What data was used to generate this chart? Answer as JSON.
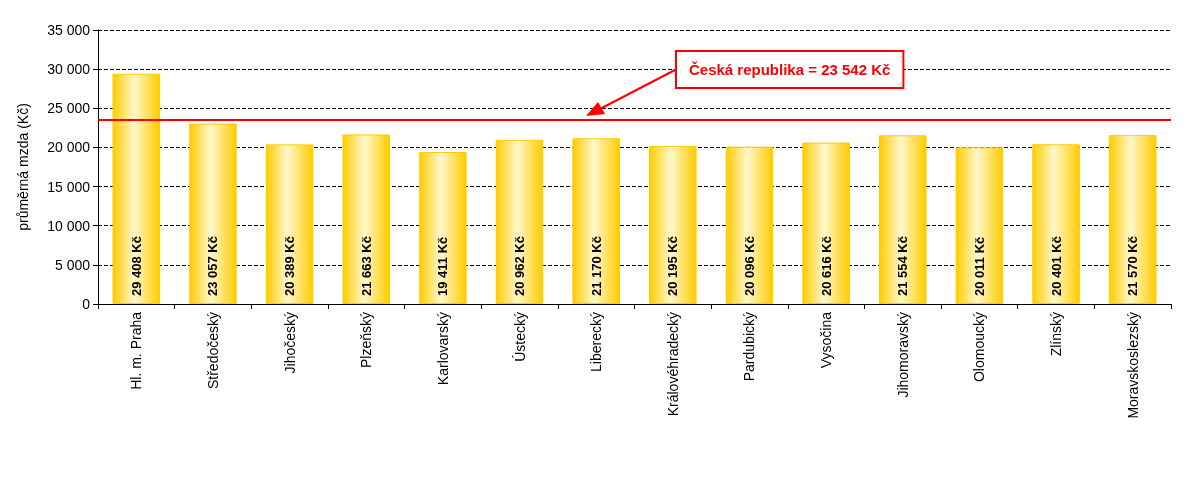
{
  "chart_data": {
    "type": "bar",
    "ylabel": "průměrná mzda (Kč)",
    "categories": [
      "Hl. m. Praha",
      "Středočeský",
      "Jihočeský",
      "Plzeňský",
      "Karlovarský",
      "Ústecký",
      "Liberecký",
      "Královéhradecký",
      "Pardubický",
      "Vysočina",
      "Jihomoravský",
      "Olomoucký",
      "Zlínský",
      "Moravskoslezský"
    ],
    "values": [
      29408,
      23057,
      20389,
      21663,
      19411,
      20962,
      21170,
      20195,
      20096,
      20616,
      21554,
      20011,
      20401,
      21570
    ],
    "value_labels": [
      "29 408 Kč",
      "23 057 Kč",
      "20 389 Kč",
      "21 663 Kč",
      "19 411 Kč",
      "20 962 Kč",
      "21 170 Kč",
      "20 195 Kč",
      "20 096 Kč",
      "20 616 Kč",
      "21 554 Kč",
      "20 011 Kč",
      "20 401 Kč",
      "21 570 Kč"
    ],
    "color": "#ffcc00",
    "ylim": [
      0,
      35000
    ],
    "yticks": [
      {
        "value": 0,
        "label": "0"
      },
      {
        "value": 5000,
        "label": "5 000"
      },
      {
        "value": 10000,
        "label": "10 000"
      },
      {
        "value": 15000,
        "label": "15 000"
      },
      {
        "value": 20000,
        "label": "20 000"
      },
      {
        "value": 25000,
        "label": "25 000"
      },
      {
        "value": 30000,
        "label": "30 000"
      },
      {
        "value": 35000,
        "label": "35 000"
      }
    ],
    "grid": "y",
    "ref_lines": [
      {
        "axis": "y",
        "value": 23542,
        "label": "Česká republika = 23 542 Kč",
        "color": "#ff0000"
      }
    ]
  }
}
